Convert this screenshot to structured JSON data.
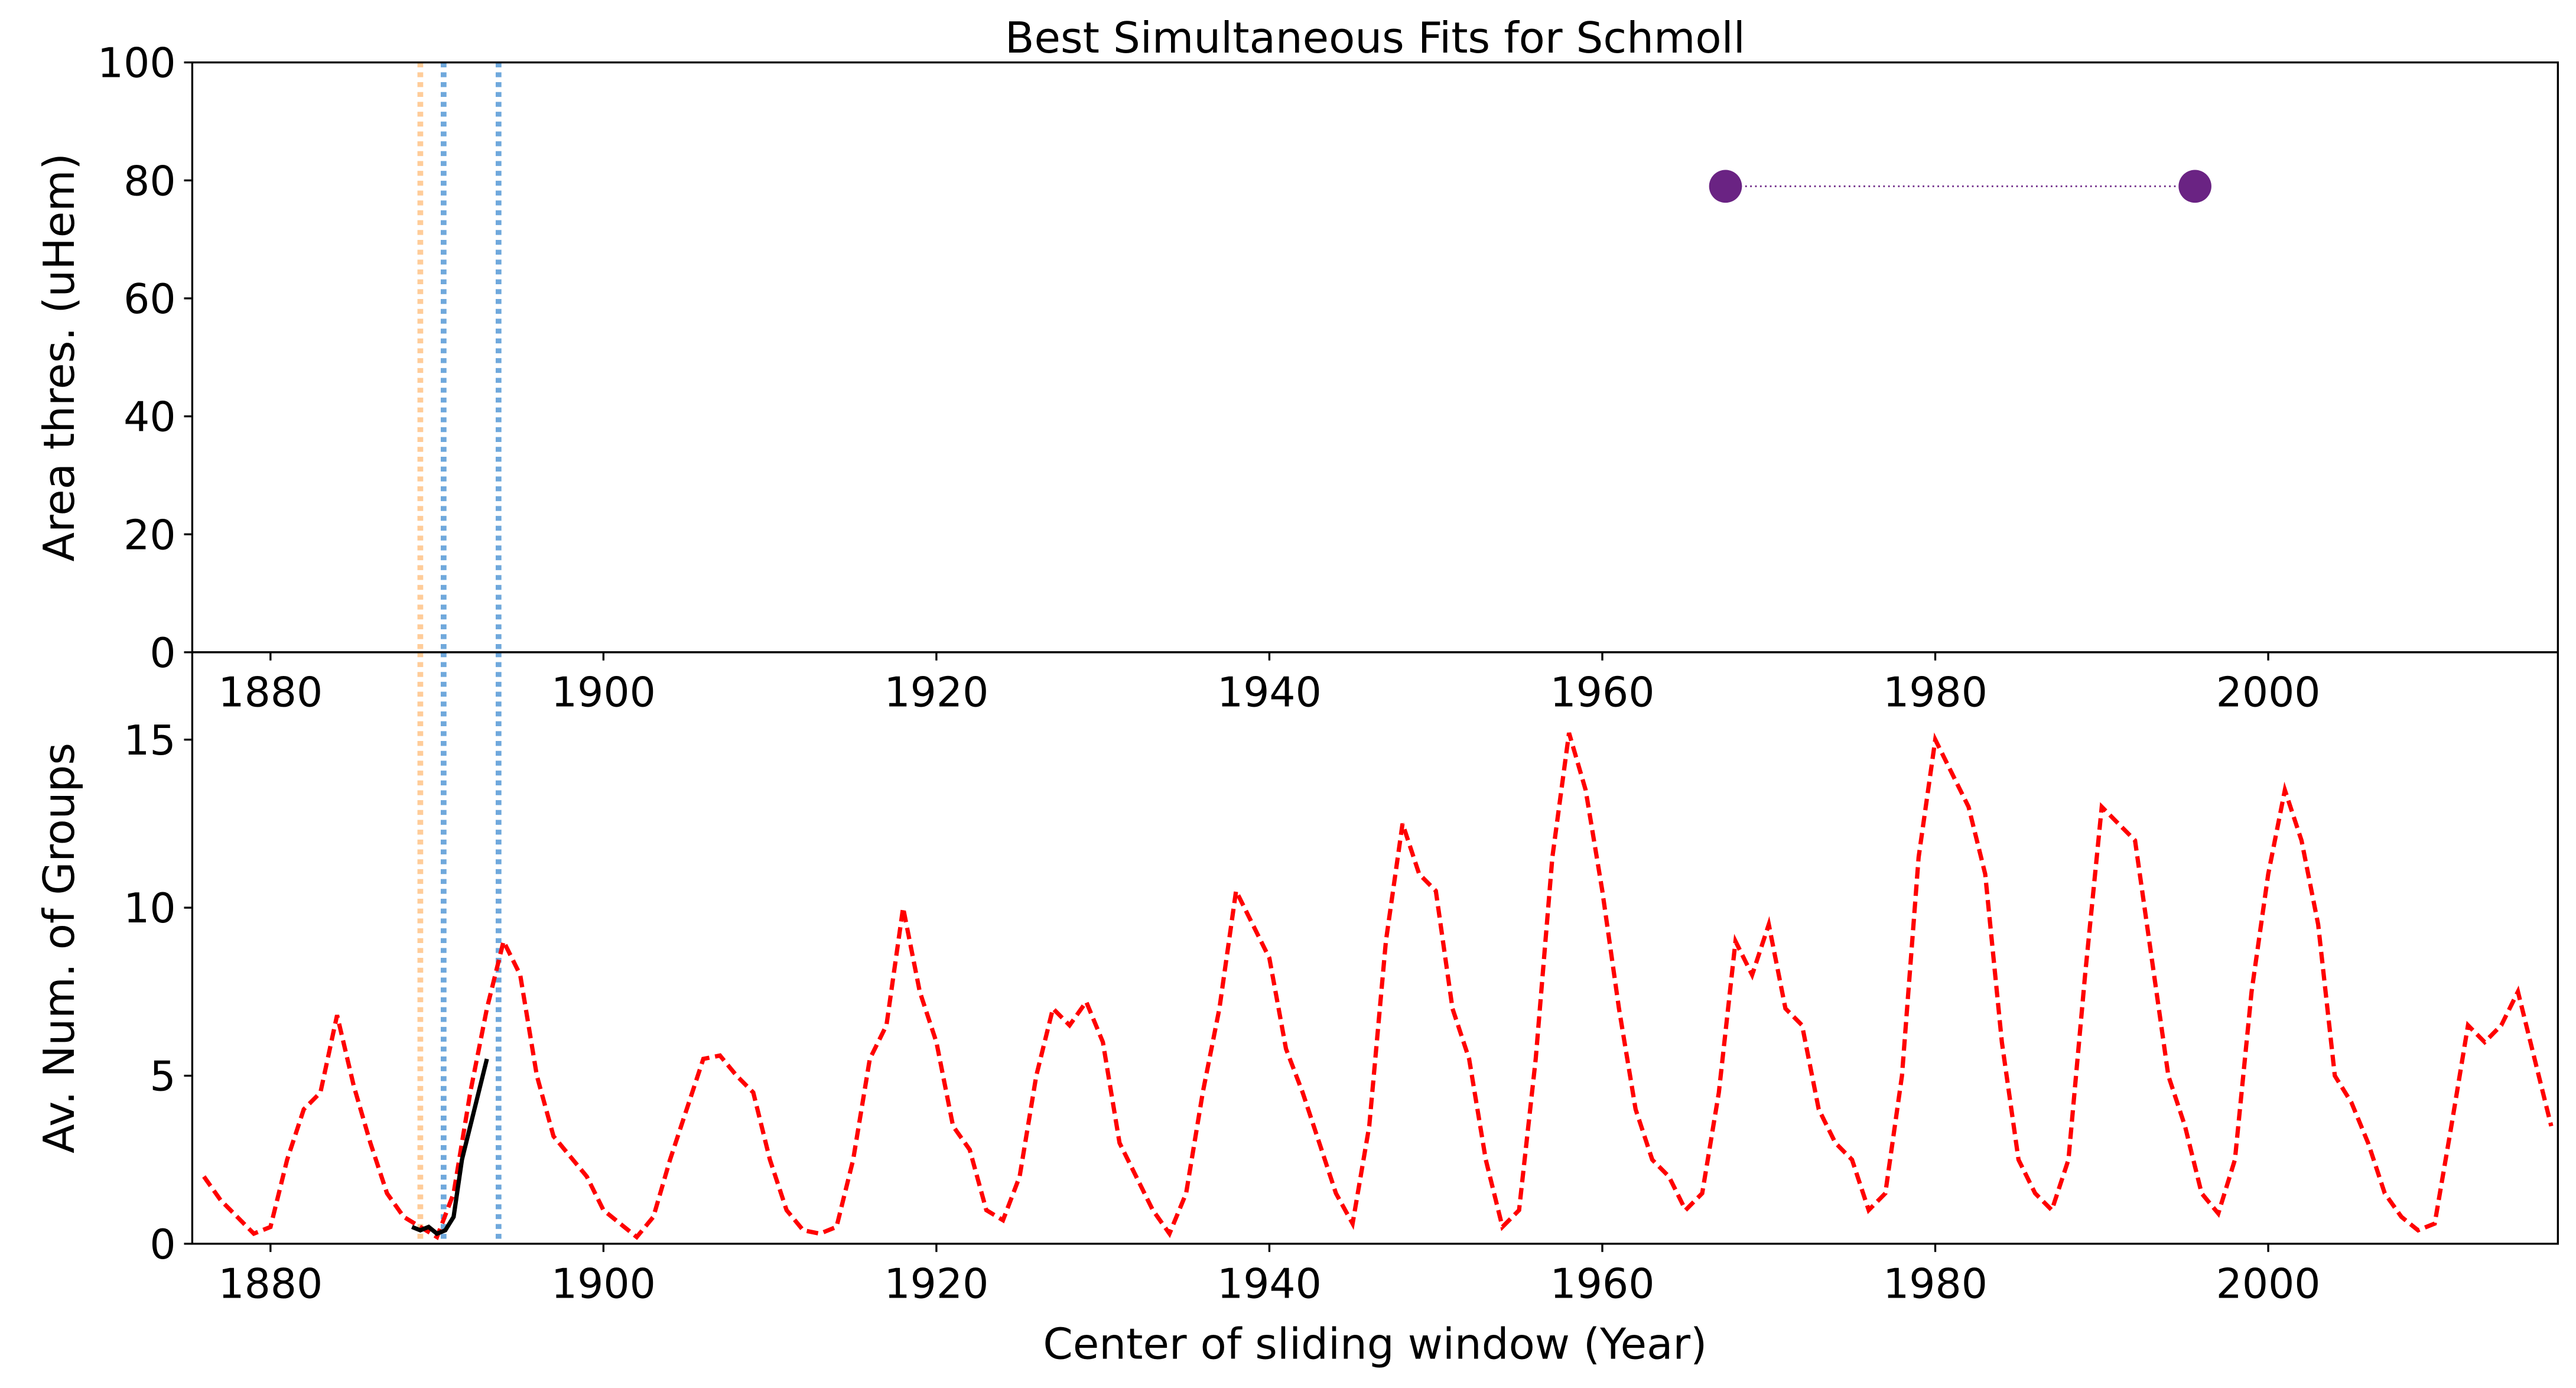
{
  "chart_data": [
    {
      "type": "line",
      "title": "Best Simultaneous Fits for Schmoll",
      "ylabel": "Area thres. (uHem)",
      "xlim": [
        1875.3,
        2017.4
      ],
      "ylim": [
        0,
        100
      ],
      "xticks": [
        1880,
        1900,
        1920,
        1940,
        1960,
        1980,
        2000
      ],
      "yticks": [
        0,
        20,
        40,
        60,
        80,
        100
      ],
      "vlines": [
        {
          "x": 1889.0,
          "color": "#ffcc99"
        },
        {
          "x": 1890.4,
          "color": "#6fa8dc"
        },
        {
          "x": 1893.7,
          "color": "#6fa8dc"
        }
      ],
      "series": [
        {
          "color": "#6a2383",
          "style": "dotted",
          "markers": true,
          "x": [
            1967.4,
            1995.6
          ],
          "values": [
            79,
            79
          ]
        }
      ]
    },
    {
      "type": "line",
      "xlabel": "Center of sliding window (Year)",
      "ylabel": "Av. Num. of Groups",
      "xlim": [
        1875.3,
        2017.4
      ],
      "ylim": [
        0,
        17.6
      ],
      "xticks": [
        1880,
        1900,
        1920,
        1940,
        1960,
        1980,
        2000
      ],
      "yticks": [
        0,
        5,
        10,
        15
      ],
      "vlines": [
        {
          "x": 1889.0,
          "color": "#ffcc99"
        },
        {
          "x": 1890.4,
          "color": "#6fa8dc"
        },
        {
          "x": 1893.7,
          "color": "#6fa8dc"
        }
      ],
      "series": [
        {
          "color": "#ff0000",
          "style": "dashed",
          "markers": false,
          "x": [
            1876,
            1877,
            1878,
            1879,
            1880,
            1881,
            1882,
            1883,
            1884,
            1885,
            1886,
            1887,
            1888,
            1889,
            1890,
            1891,
            1892,
            1893,
            1894,
            1895,
            1896,
            1897,
            1898,
            1899,
            1900,
            1901,
            1902,
            1903,
            1904,
            1905,
            1906,
            1907,
            1908,
            1909,
            1910,
            1911,
            1912,
            1913,
            1914,
            1915,
            1916,
            1917,
            1918,
            1919,
            1920,
            1921,
            1922,
            1923,
            1924,
            1925,
            1926,
            1927,
            1928,
            1929,
            1930,
            1931,
            1932,
            1933,
            1934,
            1935,
            1936,
            1937,
            1938,
            1939,
            1940,
            1941,
            1942,
            1943,
            1944,
            1945,
            1946,
            1947,
            1948,
            1949,
            1950,
            1951,
            1952,
            1953,
            1954,
            1955,
            1956,
            1957,
            1958,
            1959,
            1960,
            1961,
            1962,
            1963,
            1964,
            1965,
            1966,
            1967,
            1968,
            1969,
            1970,
            1971,
            1972,
            1973,
            1974,
            1975,
            1976,
            1977,
            1978,
            1979,
            1980,
            1981,
            1982,
            1983,
            1984,
            1985,
            1986,
            1987,
            1988,
            1989,
            1990,
            1991,
            1992,
            1993,
            1994,
            1995,
            1996,
            1997,
            1998,
            1999,
            2000,
            2001,
            2002,
            2003,
            2004,
            2005,
            2006,
            2007,
            2008,
            2009,
            2010,
            2011,
            2012,
            2013,
            2014,
            2015,
            2016,
            2017
          ],
          "values": [
            2.0,
            1.3,
            0.8,
            0.3,
            0.5,
            2.5,
            4.0,
            4.5,
            6.8,
            4.7,
            3.0,
            1.5,
            0.8,
            0.5,
            0.2,
            1.5,
            4.5,
            7.0,
            9.0,
            8.0,
            5.0,
            3.2,
            2.6,
            2.0,
            1.0,
            0.6,
            0.2,
            0.8,
            2.5,
            4.0,
            5.5,
            5.6,
            5.0,
            4.5,
            2.5,
            1.0,
            0.4,
            0.3,
            0.5,
            2.5,
            5.5,
            6.5,
            10.0,
            7.5,
            6.0,
            3.5,
            2.8,
            1.0,
            0.7,
            2.0,
            5.0,
            7.0,
            6.5,
            7.2,
            6.0,
            3.0,
            2.0,
            1.0,
            0.3,
            1.5,
            4.5,
            7.0,
            10.5,
            9.5,
            8.5,
            5.8,
            4.5,
            3.0,
            1.5,
            0.6,
            3.5,
            9.0,
            12.5,
            11.0,
            10.5,
            7.0,
            5.5,
            2.5,
            0.5,
            1.0,
            5.5,
            11.5,
            15.2,
            13.5,
            10.5,
            7.0,
            4.0,
            2.5,
            2.0,
            1.0,
            1.5,
            4.5,
            9.0,
            8.0,
            9.5,
            7.0,
            6.5,
            4.0,
            3.0,
            2.5,
            1.0,
            1.5,
            5.0,
            11.5,
            15.0,
            14.0,
            13.0,
            11.0,
            6.0,
            2.5,
            1.5,
            1.0,
            2.5,
            8.0,
            13.0,
            12.5,
            12.0,
            8.5,
            5.0,
            3.5,
            1.5,
            0.9,
            2.5,
            7.5,
            11.0,
            13.5,
            12.0,
            9.5,
            5.0,
            4.2,
            3.0,
            1.5,
            0.8,
            0.4,
            0.6,
            3.5,
            6.5,
            6.0,
            6.5,
            7.5,
            5.5,
            3.5
          ]
        },
        {
          "color": "#000000",
          "style": "solid",
          "markers": false,
          "x": [
            1888.5,
            1889,
            1889.5,
            1890,
            1890.5,
            1891,
            1891.5,
            1892,
            1892.5,
            1893
          ],
          "values": [
            0.5,
            0.4,
            0.5,
            0.3,
            0.4,
            0.8,
            2.5,
            3.5,
            4.5,
            5.5
          ]
        }
      ]
    }
  ]
}
